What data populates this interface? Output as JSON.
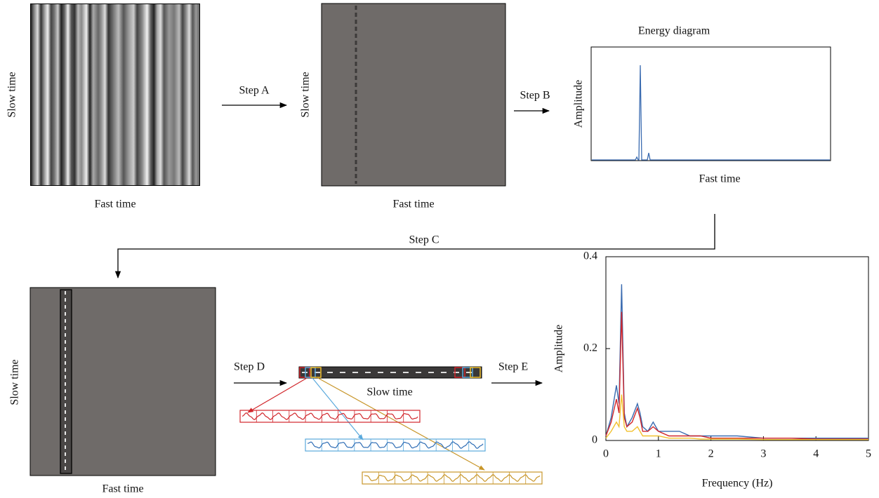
{
  "panels": [
    {
      "x_label": "Fast time",
      "y_label": "Slow time"
    },
    {
      "x_label": "Fast time",
      "y_label": "Slow time"
    },
    {
      "x_label": "Fast time",
      "y_label": "Slow time"
    }
  ],
  "steps": [
    "Step A",
    "Step B",
    "Step C",
    "Step D",
    "Step E"
  ],
  "energy_diagram": {
    "title": "Energy diagram",
    "x_label": "Fast time",
    "y_label": "Amplitude"
  },
  "strip_label": "Slow time",
  "chart_data": {
    "type": "line",
    "x_label": "Frequency (Hz)",
    "y_label": "Amplitude",
    "x": [
      0,
      0.1,
      0.2,
      0.25,
      0.3,
      0.35,
      0.4,
      0.5,
      0.6,
      0.65,
      0.7,
      0.8,
      0.9,
      1.0,
      1.2,
      1.4,
      1.6,
      1.8,
      2.0,
      2.5,
      3,
      3.5,
      4,
      4.5,
      5
    ],
    "series": [
      {
        "color": "#3a6bb0",
        "values": [
          0.01,
          0.05,
          0.12,
          0.08,
          0.34,
          0.06,
          0.03,
          0.05,
          0.08,
          0.06,
          0.03,
          0.02,
          0.04,
          0.02,
          0.02,
          0.02,
          0.01,
          0.01,
          0.01,
          0.01,
          0.005,
          0.005,
          0.005,
          0.005,
          0.005
        ]
      },
      {
        "color": "#d1262b",
        "values": [
          0.01,
          0.04,
          0.09,
          0.06,
          0.28,
          0.05,
          0.03,
          0.04,
          0.07,
          0.05,
          0.02,
          0.02,
          0.03,
          0.02,
          0.01,
          0.01,
          0.01,
          0.01,
          0.005,
          0.005,
          0.005,
          0.005,
          0.003,
          0.003,
          0.003
        ]
      },
      {
        "color": "#f2c12e",
        "values": [
          0.005,
          0.02,
          0.04,
          0.03,
          0.1,
          0.03,
          0.02,
          0.02,
          0.03,
          0.02,
          0.01,
          0.01,
          0.01,
          0.01,
          0.005,
          0.005,
          0.005,
          0.003,
          0.003,
          0.003,
          0.002,
          0.002,
          0.002,
          0.002,
          0.002
        ]
      }
    ],
    "xlim": [
      0,
      5
    ],
    "ylim": [
      0,
      0.4
    ],
    "xticks": [
      0,
      1,
      2,
      3,
      4,
      5
    ],
    "yticks": [
      0,
      0.2,
      0.4
    ]
  }
}
